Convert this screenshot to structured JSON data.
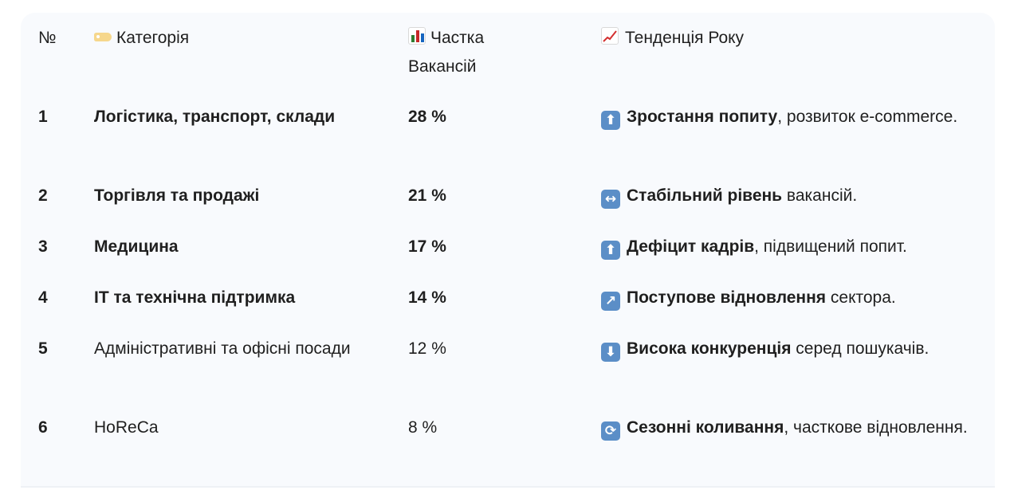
{
  "headers": {
    "no": "№",
    "category": "Категорія",
    "share": "Частка Вакансій",
    "trend": "Тенденція Року"
  },
  "rows": [
    {
      "no": "1",
      "category": "Логістика, транспорт, склади",
      "share": "28 %",
      "trend_icon": "⬆",
      "trend_bold": "Зростання попиту",
      "trend_rest": ", розвиток e-commerce."
    },
    {
      "no": "2",
      "category": "Торгівля та продажі",
      "share": "21 %",
      "trend_icon": "↔",
      "trend_bold": "Стабільний рівень",
      "trend_rest": " вакансій."
    },
    {
      "no": "3",
      "category": "Медицина",
      "share": "17 %",
      "trend_icon": "⬆",
      "trend_bold": "Дефіцит кадрів",
      "trend_rest": ", підвищений попит."
    },
    {
      "no": "4",
      "category": "ІТ та технічна підтримка",
      "share": "14 %",
      "trend_icon": "↗",
      "trend_bold": "Поступове відновлення",
      "trend_rest": " сектора."
    },
    {
      "no": "5",
      "category": "Адміністративні та офісні посади",
      "share": "12 %",
      "trend_icon": "⬇",
      "trend_bold": "Висока конкуренція",
      "trend_rest": " серед пошукачів."
    },
    {
      "no": "6",
      "category": "HoReCa",
      "share": "8 %",
      "trend_icon": "⟳",
      "trend_bold": "Сезонні коливання",
      "trend_rest": ", часткове відновлення."
    }
  ],
  "colors": {
    "card_bg": "#f8fafd",
    "trend_icon_bg": "#5b8ec7"
  }
}
